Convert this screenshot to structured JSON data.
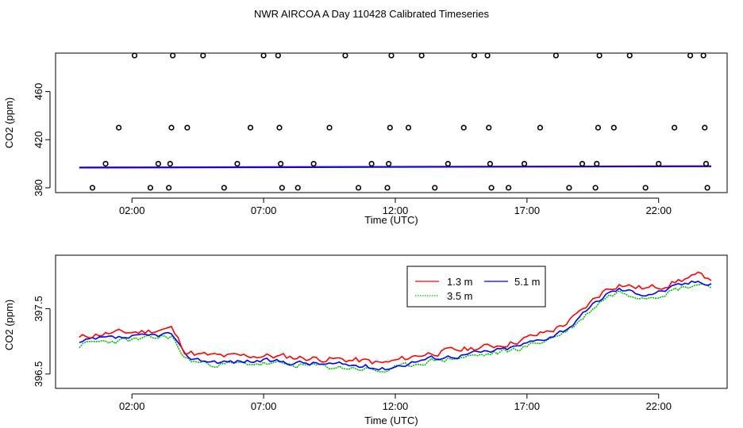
{
  "title": "NWR AIRCOA A  Day 110428  Calibrated Timeseries",
  "chart_data": [
    {
      "type": "scatter",
      "name": "calibrated-timeseries",
      "xlabel": "Time (UTC)",
      "ylabel": "CO2 (ppm)",
      "xlim": [
        -0.9,
        24.6
      ],
      "ylim": [
        376,
        492
      ],
      "xticks": [
        2,
        7,
        12,
        17,
        22
      ],
      "xtick_labels": [
        "02:00",
        "07:00",
        "12:00",
        "17:00",
        "22:00"
      ],
      "yticks": [
        380,
        420,
        460
      ],
      "ytick_labels": [
        "380",
        "420",
        "460"
      ],
      "colors": {
        "line": "#0000ff",
        "lineAlt": "#ff0000",
        "points": "#000000"
      },
      "line": {
        "x": [
          0,
          24
        ],
        "y": [
          396.8,
          397.9
        ]
      },
      "points": [
        [
          0.5,
          380
        ],
        [
          1.0,
          400
        ],
        [
          1.5,
          430
        ],
        [
          2.1,
          490
        ],
        [
          2.7,
          380
        ],
        [
          3.0,
          400
        ],
        [
          3.4,
          380
        ],
        [
          3.45,
          400
        ],
        [
          3.5,
          430
        ],
        [
          3.55,
          490
        ],
        [
          4.1,
          430
        ],
        [
          4.7,
          490
        ],
        [
          5.5,
          380
        ],
        [
          6.0,
          400
        ],
        [
          6.5,
          430
        ],
        [
          7.0,
          490
        ],
        [
          7.55,
          490
        ],
        [
          7.6,
          430
        ],
        [
          7.65,
          400
        ],
        [
          7.7,
          380
        ],
        [
          8.3,
          380
        ],
        [
          8.9,
          400
        ],
        [
          9.5,
          430
        ],
        [
          10.1,
          490
        ],
        [
          10.6,
          380
        ],
        [
          11.1,
          400
        ],
        [
          11.7,
          380
        ],
        [
          11.75,
          400
        ],
        [
          11.8,
          430
        ],
        [
          11.85,
          490
        ],
        [
          12.5,
          430
        ],
        [
          13.0,
          490
        ],
        [
          13.5,
          380
        ],
        [
          14.0,
          400
        ],
        [
          14.6,
          430
        ],
        [
          15.0,
          490
        ],
        [
          15.5,
          490
        ],
        [
          15.55,
          430
        ],
        [
          15.6,
          400
        ],
        [
          15.65,
          380
        ],
        [
          16.3,
          380
        ],
        [
          16.9,
          400
        ],
        [
          17.5,
          430
        ],
        [
          18.1,
          490
        ],
        [
          18.6,
          380
        ],
        [
          19.1,
          400
        ],
        [
          19.6,
          380
        ],
        [
          19.65,
          400
        ],
        [
          19.7,
          430
        ],
        [
          19.75,
          490
        ],
        [
          20.3,
          430
        ],
        [
          20.9,
          490
        ],
        [
          21.5,
          380
        ],
        [
          22.0,
          400
        ],
        [
          22.6,
          430
        ],
        [
          23.2,
          490
        ],
        [
          23.7,
          490
        ],
        [
          23.75,
          430
        ],
        [
          23.8,
          400
        ],
        [
          23.85,
          380
        ]
      ]
    },
    {
      "type": "line",
      "name": "co2-by-height",
      "xlabel": "Time (UTC)",
      "ylabel": "CO2 (ppm)",
      "xlim": [
        -0.9,
        24.6
      ],
      "ylim": [
        396.28,
        398.32
      ],
      "xticks": [
        2,
        7,
        12,
        17,
        22
      ],
      "xtick_labels": [
        "02:00",
        "07:00",
        "12:00",
        "17:00",
        "22:00"
      ],
      "yticks": [
        396.5,
        397.5
      ],
      "ytick_labels": [
        "396.5",
        "397.5"
      ],
      "legend_position": "top-right",
      "x_start": 0,
      "x_step": 0.125,
      "anchors": {
        "t": [
          0,
          0.5,
          1,
          1.5,
          2,
          2.5,
          3,
          3.5,
          4,
          4.5,
          5,
          5.5,
          6,
          6.5,
          7,
          7.5,
          8,
          8.5,
          9,
          9.5,
          10,
          10.5,
          11,
          11.5,
          12,
          12.5,
          13,
          13.5,
          14,
          14.5,
          15,
          15.5,
          16,
          16.5,
          17,
          17.5,
          18,
          18.5,
          19,
          19.5,
          20,
          20.5,
          21,
          21.5,
          22,
          22.5,
          23,
          23.5,
          24
        ],
        "v": [
          396.97,
          397.02,
          397.04,
          397.05,
          397.06,
          397.07,
          397.1,
          397.12,
          396.78,
          396.72,
          396.7,
          396.69,
          396.69,
          396.7,
          396.7,
          396.69,
          396.68,
          396.67,
          396.66,
          396.65,
          396.64,
          396.63,
          396.61,
          396.58,
          396.62,
          396.67,
          396.72,
          396.75,
          396.77,
          396.79,
          396.82,
          396.84,
          396.87,
          396.91,
          396.97,
          397.03,
          397.1,
          397.2,
          397.35,
          397.55,
          397.72,
          397.8,
          397.76,
          397.73,
          397.76,
          397.82,
          397.88,
          397.92,
          397.9
        ]
      },
      "series": [
        {
          "name": "1.3 m",
          "color": "#ff0000",
          "offset": 0.08,
          "noise": 0.045,
          "seed": 11
        },
        {
          "name": "3.5 m",
          "color": "#00c000",
          "offset": -0.04,
          "noise": 0.04,
          "seed": 23
        },
        {
          "name": "5.1 m",
          "color": "#0000ff",
          "offset": 0.0,
          "noise": 0.035,
          "seed": 37
        }
      ]
    }
  ]
}
